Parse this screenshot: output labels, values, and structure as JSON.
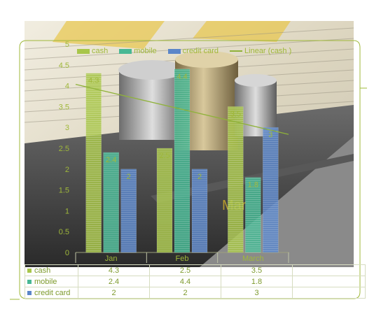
{
  "colors": {
    "cash": "#a8c64a",
    "mobile": "#48b894",
    "credit_card": "#5b86c9",
    "line": "#8fb23a",
    "label_text": "#9fb83a"
  },
  "chart_data": {
    "type": "bar",
    "categories": [
      "Jan",
      "Feb",
      "March"
    ],
    "series": [
      {
        "name": "cash",
        "values": [
          4.3,
          2.5,
          3.5
        ]
      },
      {
        "name": "mobile",
        "values": [
          2.4,
          4.4,
          1.8
        ]
      },
      {
        "name": "credit card",
        "values": [
          2,
          2,
          3
        ]
      }
    ],
    "line_series": {
      "name": "Linear (cash )",
      "trend": "linear",
      "source": "cash"
    },
    "ylim": [
      0,
      5
    ],
    "yticks": [
      "0",
      "0.5",
      "1",
      "1.5",
      "2",
      "2.5",
      "3",
      "3.5",
      "4",
      "4.5",
      "5"
    ],
    "legend_position": "top",
    "data_table": true,
    "data_labels": true
  },
  "legend": {
    "cash": "cash",
    "mobile": "mobile",
    "credit_card": "credit card",
    "linear": "Linear (cash )"
  },
  "table": {
    "rows": [
      {
        "label": "cash",
        "values": [
          "4.3",
          "2.5",
          "3.5"
        ]
      },
      {
        "label": "mobile",
        "values": [
          "2.4",
          "4.4",
          "1.8"
        ]
      },
      {
        "label": "credit card",
        "values": [
          "2",
          "2",
          "3"
        ]
      }
    ]
  },
  "decor": {
    "photo_word": "Mar"
  }
}
